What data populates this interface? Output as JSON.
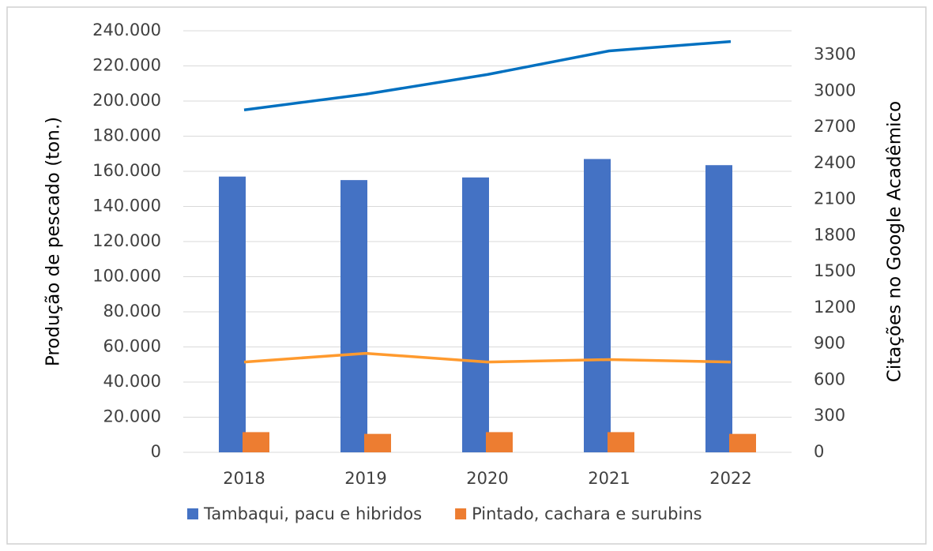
{
  "chart_data": {
    "type": "bar",
    "y_label": "Produção de pescado (ton.)",
    "y2_label": "Citações no Google Acadêmico",
    "categories": [
      "2018",
      "2019",
      "2020",
      "2021",
      "2022"
    ],
    "series": [
      {
        "name": "Tambaqui, pacu e hibridos",
        "color": "#4472c4",
        "values": [
          157000,
          155000,
          156500,
          167000,
          163500
        ]
      },
      {
        "name": "Pintado, cachara e surubins",
        "color": "#ed7d31",
        "values": [
          11500,
          10500,
          11500,
          11500,
          10500
        ]
      },
      {
        "type": "line",
        "axis": "y2",
        "color": "#0070c0",
        "values": [
          2843,
          2974,
          3137,
          3333,
          3411
        ]
      },
      {
        "type": "line",
        "axis": "y2",
        "color": "#ff9a2e",
        "values": [
          750,
          822,
          750,
          770,
          750
        ]
      }
    ],
    "ylim": [
      0,
      240000
    ],
    "yticks": [
      0,
      {
        "value": 20000,
        "label": "20.000"
      },
      {
        "value": 40000,
        "label": "40.000"
      },
      {
        "value": 60000,
        "label": "60.000"
      },
      {
        "value": 80000,
        "label": "80.000"
      },
      {
        "value": 100000,
        "label": "100.000"
      },
      {
        "value": 120000,
        "label": "120.000"
      },
      {
        "value": 140000,
        "label": "140.000"
      },
      {
        "value": 160000,
        "label": "160.000"
      },
      {
        "value": 180000,
        "label": "180.000"
      },
      {
        "value": 200000,
        "label": "200.000"
      },
      {
        "value": 220000,
        "label": "220.000"
      },
      {
        "value": 240000,
        "label": "240.000"
      }
    ],
    "y2lim": [
      0,
      3500
    ],
    "y2ticks": [
      0,
      300,
      600,
      900,
      1200,
      1500,
      1800,
      2100,
      2400,
      2700,
      3000,
      3300
    ],
    "grid": true
  }
}
